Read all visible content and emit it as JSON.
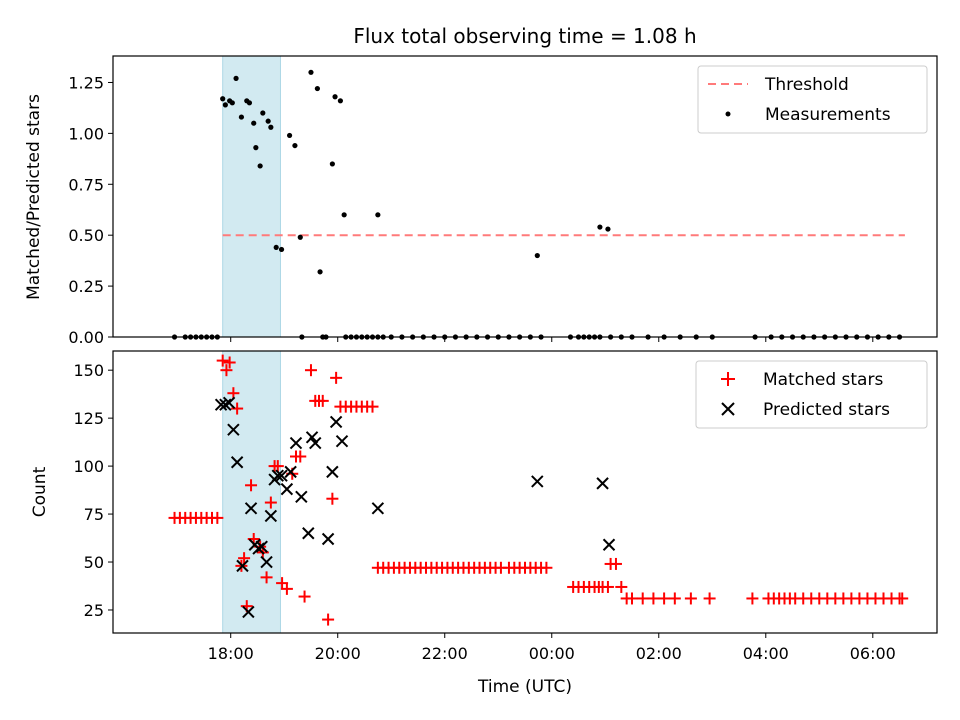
{
  "title": "Flux total observing time = 1.08 h",
  "chart_data": [
    {
      "type": "scatter",
      "panel": "top",
      "ylabel": "Matched/Predicted stars",
      "xlabel": "",
      "ylim": [
        0,
        1.38
      ],
      "yticks": [
        0.0,
        0.25,
        0.5,
        0.75,
        1.0,
        1.25
      ],
      "ytick_labels": [
        "0.00",
        "0.25",
        "0.50",
        "0.75",
        "1.00",
        "1.25"
      ],
      "legend_position": "top-right",
      "threshold": {
        "name": "Threshold",
        "y": 0.5,
        "x_start": 17.85,
        "x_end": 30.6,
        "color": "#ff7a7a"
      },
      "series": [
        {
          "name": "Measurements",
          "color": "#000000",
          "x": [
            17.85,
            17.9,
            17.98,
            18.03,
            18.1,
            18.2,
            18.3,
            18.35,
            18.43,
            18.47,
            18.55,
            18.6,
            18.7,
            18.75,
            18.85,
            18.95,
            19.1,
            19.2,
            19.3,
            19.5,
            19.62,
            19.67,
            19.9,
            19.95,
            20.05,
            20.12,
            20.75,
            23.73,
            24.9,
            25.05,
            16.95,
            17.15,
            17.25,
            17.35,
            17.45,
            17.55,
            17.65,
            17.75,
            19.33,
            19.72,
            19.78,
            20.15,
            20.25,
            20.35,
            20.45,
            20.55,
            20.65,
            20.75,
            20.85,
            21.0,
            21.2,
            21.4,
            21.6,
            21.8,
            22.0,
            22.2,
            22.4,
            22.6,
            22.8,
            23.0,
            23.2,
            23.4,
            23.6,
            23.8,
            24.35,
            24.5,
            24.6,
            24.7,
            24.8,
            24.9,
            25.1,
            25.3,
            25.5,
            25.8,
            26.1,
            26.4,
            26.7,
            27.0,
            27.8,
            28.1,
            28.3,
            28.5,
            28.7,
            28.9,
            29.1,
            29.3,
            29.5,
            29.7,
            29.9,
            30.1,
            30.3,
            30.5
          ],
          "y": [
            1.17,
            1.14,
            1.16,
            1.15,
            1.27,
            1.08,
            1.16,
            1.15,
            1.05,
            0.93,
            0.84,
            1.1,
            1.06,
            1.03,
            0.44,
            0.43,
            0.99,
            0.94,
            0.49,
            1.3,
            1.22,
            0.32,
            0.85,
            1.18,
            1.16,
            0.6,
            0.6,
            0.4,
            0.54,
            0.53,
            0.0,
            0.0,
            0.0,
            0.0,
            0.0,
            0.0,
            0.0,
            0.0,
            0.0,
            0.0,
            0.0,
            0.0,
            0.0,
            0.0,
            0.0,
            0.0,
            0.0,
            0.0,
            0.0,
            0.0,
            0.0,
            0.0,
            0.0,
            0.0,
            0.0,
            0.0,
            0.0,
            0.0,
            0.0,
            0.0,
            0.0,
            0.0,
            0.0,
            0.0,
            0.0,
            0.0,
            0.0,
            0.0,
            0.0,
            0.0,
            0.0,
            0.0,
            0.0,
            0.0,
            0.0,
            0.0,
            0.0,
            0.0,
            0.0,
            0.0,
            0.0,
            0.0,
            0.0,
            0.0,
            0.0,
            0.0,
            0.0,
            0.0,
            0.0,
            0.0,
            0.0,
            0.0
          ]
        }
      ]
    },
    {
      "type": "scatter",
      "panel": "bottom",
      "ylabel": "Count",
      "xlabel": "Time (UTC)",
      "xlim": [
        15.8,
        31.2
      ],
      "ylim": [
        13,
        160
      ],
      "yticks": [
        25,
        50,
        75,
        100,
        125,
        150
      ],
      "ytick_labels": [
        "25",
        "50",
        "75",
        "100",
        "125",
        "150"
      ],
      "xticks": [
        18,
        20,
        22,
        24,
        26,
        28,
        30
      ],
      "xtick_labels": [
        "18:00",
        "20:00",
        "22:00",
        "00:00",
        "02:00",
        "04:00",
        "06:00"
      ],
      "legend_position": "top-right",
      "series": [
        {
          "name": "Matched stars",
          "color": "#ff0000",
          "marker": "plus",
          "x": [
            16.95,
            17.05,
            17.15,
            17.25,
            17.35,
            17.45,
            17.55,
            17.65,
            17.75,
            17.85,
            17.92,
            17.98,
            18.05,
            18.12,
            18.2,
            18.25,
            18.3,
            18.38,
            18.43,
            18.55,
            18.6,
            18.67,
            18.75,
            18.82,
            18.88,
            18.96,
            19.05,
            19.15,
            19.22,
            19.3,
            19.38,
            19.5,
            19.58,
            19.65,
            19.72,
            19.82,
            19.9,
            19.97,
            20.05,
            20.15,
            20.25,
            20.35,
            20.45,
            20.55,
            20.65,
            20.75,
            20.85,
            20.95,
            21.05,
            21.15,
            21.25,
            21.35,
            21.45,
            21.55,
            21.65,
            21.75,
            21.85,
            21.95,
            22.05,
            22.15,
            22.25,
            22.35,
            22.45,
            22.55,
            22.65,
            22.75,
            22.85,
            22.95,
            23.05,
            23.2,
            23.3,
            23.4,
            23.5,
            23.6,
            23.7,
            23.8,
            23.9,
            24.4,
            24.5,
            24.6,
            24.7,
            24.8,
            24.88,
            24.95,
            25.05,
            25.1,
            25.2,
            25.3,
            25.4,
            25.5,
            25.7,
            25.9,
            26.1,
            26.3,
            26.6,
            26.95,
            27.75,
            28.05,
            28.15,
            28.25,
            28.35,
            28.45,
            28.55,
            28.7,
            28.85,
            29.0,
            29.15,
            29.3,
            29.45,
            29.6,
            29.75,
            29.9,
            30.05,
            30.2,
            30.35,
            30.5,
            30.55
          ],
          "y": [
            73,
            73,
            73,
            73,
            73,
            73,
            73,
            73,
            73,
            155,
            150,
            154,
            138,
            130,
            48,
            52,
            27,
            90,
            62,
            58,
            55,
            42,
            81,
            100,
            100,
            39,
            36,
            96,
            105,
            105,
            32,
            150,
            134,
            134,
            134,
            20,
            83,
            146,
            131,
            131,
            131,
            131,
            131,
            131,
            131,
            47,
            47,
            47,
            47,
            47,
            47,
            47,
            47,
            47,
            47,
            47,
            47,
            47,
            47,
            47,
            47,
            47,
            47,
            47,
            47,
            47,
            47,
            47,
            47,
            47,
            47,
            47,
            47,
            47,
            47,
            47,
            47,
            37,
            37,
            37,
            37,
            37,
            37,
            37,
            37,
            49,
            49,
            37,
            31,
            31,
            31,
            31,
            31,
            31,
            31,
            31,
            31,
            31,
            31,
            31,
            31,
            31,
            31,
            31,
            31,
            31,
            31,
            31,
            31,
            31,
            31,
            31,
            31,
            31,
            31,
            31,
            31
          ]
        },
        {
          "name": "Predicted stars",
          "color": "#000000",
          "marker": "x",
          "x": [
            17.82,
            17.9,
            17.97,
            18.05,
            18.12,
            18.22,
            18.33,
            18.38,
            18.45,
            18.52,
            18.58,
            18.67,
            18.75,
            18.82,
            18.88,
            18.95,
            19.05,
            19.12,
            19.22,
            19.32,
            19.45,
            19.52,
            19.58,
            19.82,
            19.9,
            19.97,
            20.08,
            20.75,
            23.73,
            24.95,
            25.07
          ],
          "y": [
            132,
            132,
            133,
            119,
            102,
            48,
            24,
            78,
            59,
            57,
            58,
            50,
            74,
            93,
            95,
            95,
            88,
            97,
            112,
            84,
            65,
            115,
            112,
            62,
            97,
            123,
            113,
            78,
            92,
            91,
            59
          ]
        }
      ]
    }
  ],
  "shaded_region": {
    "x_start": 17.85,
    "x_end": 18.93,
    "color": "#add8e6"
  },
  "legend": {
    "top": [
      {
        "label": "Threshold",
        "kind": "dashed-line",
        "color": "#ff7a7a"
      },
      {
        "label": "Measurements",
        "kind": "dot",
        "color": "#000000"
      }
    ],
    "bottom": [
      {
        "label": "Matched stars",
        "kind": "plus",
        "color": "#ff0000"
      },
      {
        "label": "Predicted stars",
        "kind": "x",
        "color": "#000000"
      }
    ]
  }
}
